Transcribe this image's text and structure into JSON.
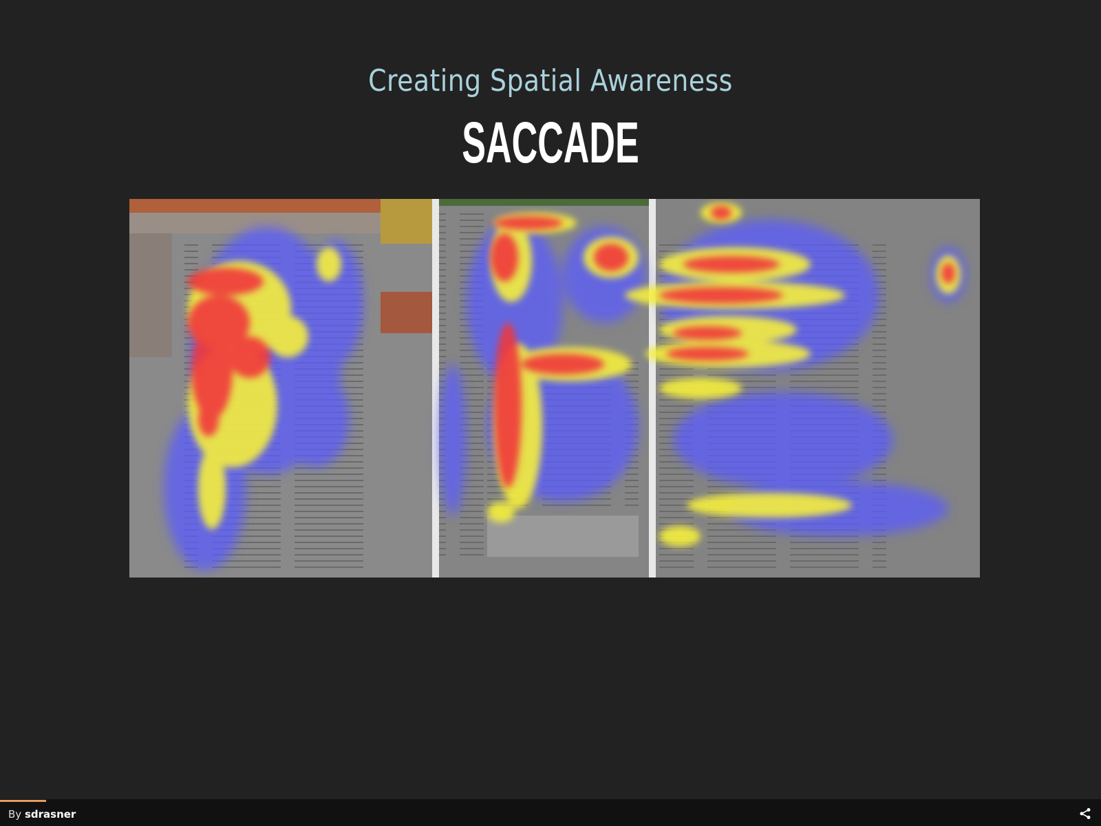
{
  "slide": {
    "subtitle": "Creating Spatial Awareness",
    "title": "SACCADE"
  },
  "image": {
    "description_icon": "eye-tracking-heatmap-image",
    "panels": 3
  },
  "footer": {
    "by_label": "By",
    "author": "sdrasner",
    "progress_fraction": 0.042,
    "share_icon": "share-icon"
  },
  "colors": {
    "background": "#222222",
    "subtitle": "#a9d1dc",
    "title": "#ffffff",
    "footer": "#111111",
    "progress": "#e99b5c"
  }
}
